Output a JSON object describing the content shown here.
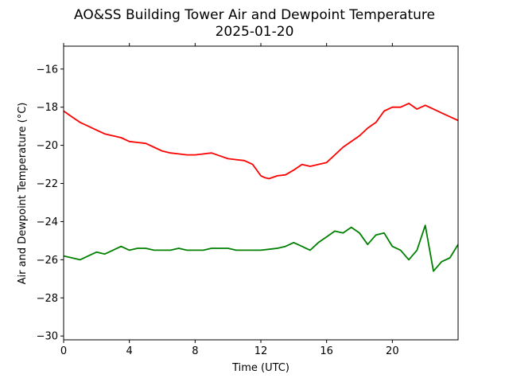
{
  "chart_data": {
    "type": "line",
    "title": "AO&SS Building Tower Air and Dewpoint Temperature",
    "subtitle": "2025-01-20",
    "xlabel": "Time (UTC)",
    "ylabel": "Air and Dewpoint Temperature (°C)",
    "xlim": [
      0,
      24
    ],
    "ylim": [
      -30.2,
      -14.8
    ],
    "xticks": [
      0,
      4,
      8,
      12,
      16,
      20
    ],
    "yticks": [
      -30,
      -28,
      -26,
      -24,
      -22,
      -20,
      -18,
      -16
    ],
    "grid": false,
    "series": [
      {
        "color": "#ff0000",
        "x": [
          0,
          0.5,
          1,
          1.5,
          2,
          2.5,
          3,
          3.5,
          4,
          4.5,
          5,
          5.5,
          6,
          6.5,
          7,
          7.5,
          8,
          8.5,
          9,
          9.5,
          10,
          10.5,
          11,
          11.5,
          12,
          12.25,
          12.5,
          13,
          13.5,
          14,
          14.5,
          15,
          15.5,
          16,
          16.5,
          17,
          17.5,
          18,
          18.5,
          19,
          19.5,
          20,
          20.5,
          21,
          21.5,
          22,
          22.5,
          23,
          23.5,
          24
        ],
        "y": [
          -18.2,
          -18.5,
          -18.8,
          -19.0,
          -19.2,
          -19.4,
          -19.5,
          -19.6,
          -19.8,
          -19.85,
          -19.9,
          -20.1,
          -20.3,
          -20.4,
          -20.45,
          -20.5,
          -20.5,
          -20.45,
          -20.4,
          -20.55,
          -20.7,
          -20.75,
          -20.8,
          -21.0,
          -21.6,
          -21.7,
          -21.75,
          -21.6,
          -21.55,
          -21.3,
          -21.0,
          -21.1,
          -21.0,
          -20.9,
          -20.5,
          -20.1,
          -19.8,
          -19.5,
          -19.1,
          -18.8,
          -18.2,
          -18.0,
          -18.0,
          -17.8,
          -18.1,
          -17.9,
          -18.1,
          -18.3,
          -18.5,
          -18.7
        ]
      },
      {
        "color": "#008000",
        "x": [
          0,
          0.5,
          1,
          1.5,
          2,
          2.5,
          3,
          3.5,
          4,
          4.5,
          5,
          5.5,
          6,
          6.5,
          7,
          7.5,
          8,
          8.5,
          9,
          9.5,
          10,
          10.5,
          11,
          11.5,
          12,
          12.5,
          13,
          13.5,
          14,
          14.5,
          15,
          15.5,
          16,
          16.5,
          17,
          17.5,
          18,
          18.5,
          19,
          19.5,
          20,
          20.5,
          21,
          21.5,
          22,
          22.5,
          23,
          23.5,
          24
        ],
        "y": [
          -25.8,
          -25.9,
          -26.0,
          -25.8,
          -25.6,
          -25.7,
          -25.5,
          -25.3,
          -25.5,
          -25.4,
          -25.4,
          -25.5,
          -25.5,
          -25.5,
          -25.4,
          -25.5,
          -25.5,
          -25.5,
          -25.4,
          -25.4,
          -25.4,
          -25.5,
          -25.5,
          -25.5,
          -25.5,
          -25.45,
          -25.4,
          -25.3,
          -25.1,
          -25.3,
          -25.5,
          -25.1,
          -24.8,
          -24.5,
          -24.6,
          -24.3,
          -24.6,
          -25.2,
          -24.7,
          -24.6,
          -25.3,
          -25.5,
          -26.0,
          -25.5,
          -24.2,
          -26.6,
          -26.1,
          -25.9,
          -25.2
        ]
      }
    ]
  }
}
